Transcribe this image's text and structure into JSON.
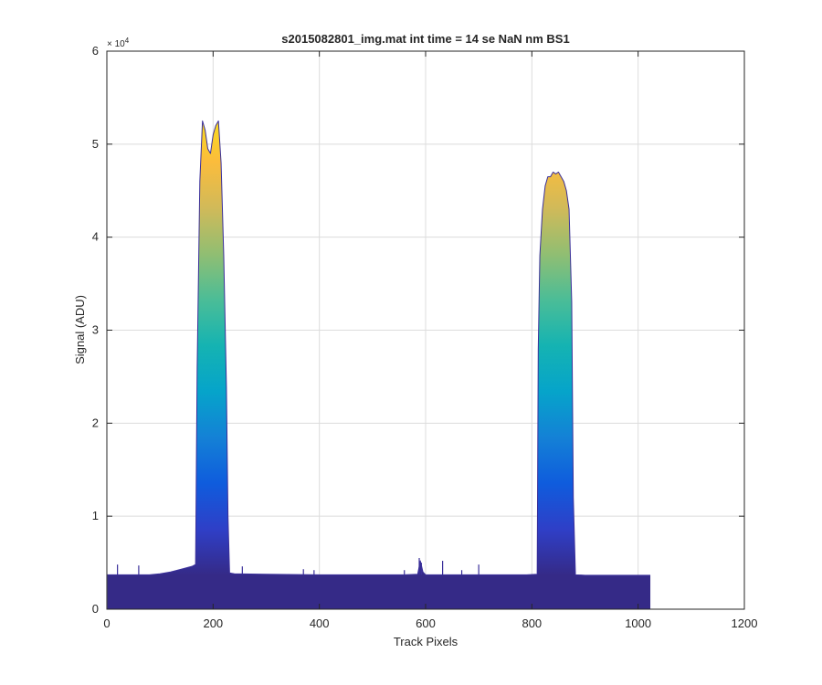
{
  "chart_data": {
    "type": "area",
    "title": "s2015082801_img.mat int time = 14 se  NaN nm BS1",
    "xlabel": "Track Pixels",
    "ylabel": "Signal (ADU)",
    "y_exponent_label": "× 10",
    "y_exponent_power": "4",
    "xlim": [
      0,
      1200
    ],
    "ylim": [
      0,
      60000
    ],
    "x_ticks": [
      0,
      200,
      400,
      600,
      800,
      1000,
      1200
    ],
    "x_tick_labels": [
      "0",
      "200",
      "400",
      "600",
      "800",
      "1000",
      "1200"
    ],
    "y_ticks": [
      0,
      10000,
      20000,
      30000,
      40000,
      50000,
      60000
    ],
    "y_tick_labels": [
      "0",
      "1",
      "2",
      "3",
      "4",
      "5",
      "6"
    ],
    "grid": true,
    "colormap": "parula",
    "colors": {
      "baseline": "#3a2f9a",
      "grid": "#dcdcdc",
      "axis": "#262626"
    },
    "series": [
      {
        "x": [
          1,
          20,
          50,
          80,
          100,
          120,
          140,
          160,
          167,
          170,
          175,
          180,
          185,
          190,
          195,
          200,
          205,
          210,
          215,
          220,
          225,
          228,
          231,
          240,
          300,
          400,
          500,
          560,
          585,
          590,
          595,
          600,
          640,
          700,
          790,
          810,
          812,
          815,
          820,
          825,
          830,
          835,
          840,
          845,
          850,
          855,
          860,
          865,
          870,
          875,
          878,
          882,
          900,
          1000,
          1023
        ],
        "y": [
          3700,
          3700,
          3700,
          3700,
          3800,
          4000,
          4300,
          4600,
          4800,
          26000,
          46000,
          52500,
          51500,
          49500,
          49000,
          51000,
          52000,
          52500,
          48000,
          38000,
          24000,
          10000,
          3900,
          3800,
          3750,
          3700,
          3700,
          3700,
          3750,
          5200,
          4000,
          3700,
          3700,
          3700,
          3700,
          3750,
          28000,
          38000,
          43000,
          45500,
          46500,
          46500,
          47000,
          46800,
          47000,
          46500,
          46000,
          45000,
          43000,
          33000,
          12000,
          3700,
          3650,
          3650,
          3650
        ]
      }
    ],
    "spikes": [
      {
        "x": 20,
        "y": 4800
      },
      {
        "x": 60,
        "y": 4700
      },
      {
        "x": 255,
        "y": 4600
      },
      {
        "x": 370,
        "y": 4300
      },
      {
        "x": 390,
        "y": 4200
      },
      {
        "x": 560,
        "y": 4200
      },
      {
        "x": 588,
        "y": 5500
      },
      {
        "x": 592,
        "y": 5000
      },
      {
        "x": 632,
        "y": 5200
      },
      {
        "x": 668,
        "y": 4200
      },
      {
        "x": 700,
        "y": 4800
      }
    ]
  }
}
